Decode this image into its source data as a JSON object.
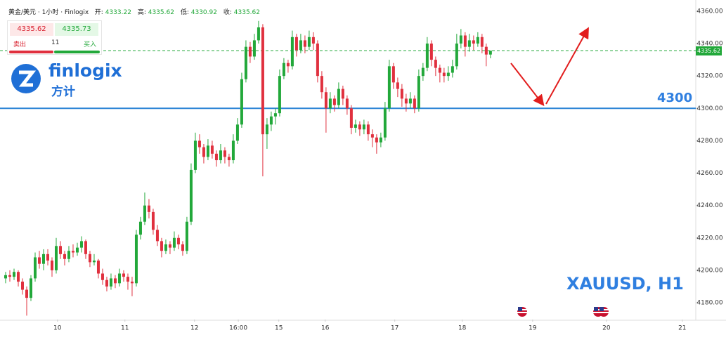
{
  "header": {
    "symbol": "黄金/美元 · 1小时 · Finlogix",
    "open_label": "开:",
    "open": 4333.22,
    "high_label": "高:",
    "high": 4335.62,
    "low_label": "低:",
    "low": 4330.92,
    "close_label": "收:",
    "close": 4335.62
  },
  "ticket": {
    "sell": 4335.62,
    "buy": 4335.73,
    "quantity": 11,
    "sell_label": "卖出",
    "buy_label": "买入"
  },
  "logo": {
    "name": "finlogix",
    "chinese": "方计"
  },
  "chart_data": {
    "type": "candlestick",
    "annotation": "XAUUSD, H1",
    "up_color": "#22a83a",
    "down_color": "#e0303e",
    "ylim": [
      4169.6,
      4366.9
    ],
    "yticks": [
      {
        "value": 4180,
        "label": "4180.00"
      },
      {
        "value": 4200,
        "label": "4200.00"
      },
      {
        "value": 4220,
        "label": "4220.00"
      },
      {
        "value": 4240,
        "label": "4240.00"
      },
      {
        "value": 4260,
        "label": "4260.00"
      },
      {
        "value": 4280,
        "label": "4280.00"
      },
      {
        "value": 4300,
        "label": "4300.00"
      },
      {
        "value": 4320,
        "label": "4320.00"
      },
      {
        "value": 4340,
        "label": "4340.00"
      },
      {
        "value": 4360,
        "label": "4360.00"
      }
    ],
    "xlim": [
      -0.5,
      163.7
    ],
    "xticks": [
      {
        "value": 12.3,
        "label": "10"
      },
      {
        "value": 28.3,
        "label": "11"
      },
      {
        "value": 44.8,
        "label": "12"
      },
      {
        "value": 55.2,
        "label": "16:00"
      },
      {
        "value": 64.8,
        "label": "15"
      },
      {
        "value": 75.8,
        "label": "16"
      },
      {
        "value": 92.3,
        "label": "17"
      },
      {
        "value": 108.3,
        "label": "18"
      },
      {
        "value": 125,
        "label": "19"
      },
      {
        "value": 142.5,
        "label": "20"
      },
      {
        "value": 160.5,
        "label": "21"
      }
    ],
    "hline": {
      "value": 4300,
      "color": "#2f86d6"
    },
    "last_price": 4335.62,
    "ohlc": [
      [
        4195,
        4199,
        4192,
        4197
      ],
      [
        4197,
        4200,
        4193,
        4196
      ],
      [
        4196,
        4201,
        4194,
        4199
      ],
      [
        4199,
        4200,
        4190,
        4193
      ],
      [
        4193,
        4195,
        4185,
        4188
      ],
      [
        4188,
        4190,
        4172,
        4183
      ],
      [
        4183,
        4197,
        4181,
        4195
      ],
      [
        4195,
        4211,
        4193,
        4208
      ],
      [
        4208,
        4212,
        4201,
        4204
      ],
      [
        4204,
        4213,
        4200,
        4210
      ],
      [
        4210,
        4213,
        4203,
        4206
      ],
      [
        4206,
        4208,
        4196,
        4200
      ],
      [
        4200,
        4220,
        4198,
        4215
      ],
      [
        4215,
        4218,
        4207,
        4210
      ],
      [
        4210,
        4212,
        4203,
        4207
      ],
      [
        4207,
        4215,
        4205,
        4212
      ],
      [
        4212,
        4216,
        4208,
        4211
      ],
      [
        4211,
        4217,
        4209,
        4214
      ],
      [
        4214,
        4221,
        4211,
        4218
      ],
      [
        4218,
        4219,
        4207,
        4210
      ],
      [
        4210,
        4212,
        4202,
        4205
      ],
      [
        4205,
        4210,
        4203,
        4206
      ],
      [
        4206,
        4207,
        4195,
        4198
      ],
      [
        4198,
        4201,
        4191,
        4194
      ],
      [
        4194,
        4196,
        4187,
        4190
      ],
      [
        4190,
        4198,
        4188,
        4195
      ],
      [
        4195,
        4197,
        4189,
        4192
      ],
      [
        4192,
        4201,
        4190,
        4198
      ],
      [
        4198,
        4200,
        4193,
        4196
      ],
      [
        4196,
        4198,
        4188,
        4193
      ],
      [
        4193,
        4196,
        4184,
        4192
      ],
      [
        4192,
        4225,
        4190,
        4222
      ],
      [
        4222,
        4233,
        4219,
        4230
      ],
      [
        4230,
        4248,
        4228,
        4240
      ],
      [
        4240,
        4244,
        4232,
        4236
      ],
      [
        4236,
        4238,
        4222,
        4225
      ],
      [
        4225,
        4228,
        4215,
        4218
      ],
      [
        4218,
        4220,
        4208,
        4212
      ],
      [
        4212,
        4219,
        4210,
        4216
      ],
      [
        4216,
        4218,
        4210,
        4214
      ],
      [
        4214,
        4224,
        4212,
        4220
      ],
      [
        4220,
        4222,
        4213,
        4216
      ],
      [
        4216,
        4218,
        4209,
        4212
      ],
      [
        4212,
        4233,
        4210,
        4230
      ],
      [
        4230,
        4266,
        4228,
        4262
      ],
      [
        4262,
        4285,
        4260,
        4280
      ],
      [
        4280,
        4284,
        4272,
        4276
      ],
      [
        4276,
        4278,
        4266,
        4270
      ],
      [
        4270,
        4281,
        4268,
        4277
      ],
      [
        4277,
        4280,
        4269,
        4272
      ],
      [
        4272,
        4274,
        4264,
        4268
      ],
      [
        4268,
        4278,
        4266,
        4274
      ],
      [
        4274,
        4276,
        4266,
        4270
      ],
      [
        4270,
        4272,
        4264,
        4268
      ],
      [
        4268,
        4284,
        4266,
        4280
      ],
      [
        4280,
        4294,
        4278,
        4290
      ],
      [
        4290,
        4322,
        4288,
        4318
      ],
      [
        4318,
        4342,
        4316,
        4338
      ],
      [
        4338,
        4341,
        4328,
        4332
      ],
      [
        4332,
        4346,
        4330,
        4342
      ],
      [
        4342,
        4354,
        4340,
        4350
      ],
      [
        4350,
        4352,
        4258,
        4284
      ],
      [
        4284,
        4294,
        4275,
        4290
      ],
      [
        4290,
        4298,
        4286,
        4295
      ],
      [
        4295,
        4300,
        4290,
        4297
      ],
      [
        4297,
        4324,
        4295,
        4320
      ],
      [
        4320,
        4331,
        4318,
        4328
      ],
      [
        4328,
        4330,
        4322,
        4326
      ],
      [
        4326,
        4348,
        4324,
        4344
      ],
      [
        4344,
        4346,
        4332,
        4336
      ],
      [
        4336,
        4346,
        4334,
        4342
      ],
      [
        4342,
        4345,
        4334,
        4338
      ],
      [
        4338,
        4348,
        4336,
        4344
      ],
      [
        4344,
        4347,
        4336,
        4340
      ],
      [
        4340,
        4342,
        4316,
        4320
      ],
      [
        4320,
        4323,
        4306,
        4310
      ],
      [
        4310,
        4313,
        4285,
        4300
      ],
      [
        4300,
        4310,
        4297,
        4306
      ],
      [
        4306,
        4308,
        4298,
        4302
      ],
      [
        4302,
        4316,
        4300,
        4312
      ],
      [
        4312,
        4314,
        4302,
        4306
      ],
      [
        4306,
        4308,
        4296,
        4300
      ],
      [
        4300,
        4302,
        4284,
        4288
      ],
      [
        4288,
        4293,
        4285,
        4290
      ],
      [
        4290,
        4292,
        4283,
        4287
      ],
      [
        4287,
        4293,
        4284,
        4290
      ],
      [
        4290,
        4292,
        4280,
        4284
      ],
      [
        4284,
        4287,
        4276,
        4282
      ],
      [
        4282,
        4284,
        4272,
        4279
      ],
      [
        4279,
        4285,
        4276,
        4282
      ],
      [
        4282,
        4304,
        4280,
        4300
      ],
      [
        4300,
        4330,
        4298,
        4326
      ],
      [
        4326,
        4328,
        4312,
        4316
      ],
      [
        4316,
        4319,
        4307,
        4312
      ],
      [
        4312,
        4315,
        4301,
        4306
      ],
      [
        4306,
        4309,
        4298,
        4303
      ],
      [
        4303,
        4310,
        4300,
        4306
      ],
      [
        4306,
        4308,
        4297,
        4300
      ],
      [
        4300,
        4324,
        4298,
        4320
      ],
      [
        4320,
        4328,
        4317,
        4325
      ],
      [
        4325,
        4344,
        4323,
        4340
      ],
      [
        4340,
        4342,
        4326,
        4330
      ],
      [
        4330,
        4332,
        4320,
        4325
      ],
      [
        4325,
        4327,
        4316,
        4322
      ],
      [
        4322,
        4325,
        4316,
        4320
      ],
      [
        4320,
        4326,
        4317,
        4322
      ],
      [
        4322,
        4330,
        4319,
        4326
      ],
      [
        4326,
        4346,
        4324,
        4340
      ],
      [
        4340,
        4349,
        4337,
        4345
      ],
      [
        4345,
        4347,
        4332,
        4338
      ],
      [
        4338,
        4346,
        4335,
        4342
      ],
      [
        4342,
        4345,
        4336,
        4340
      ],
      [
        4340,
        4347,
        4338,
        4344
      ],
      [
        4344,
        4346,
        4334,
        4338
      ],
      [
        4338,
        4340,
        4326,
        4333.22
      ],
      [
        4333.22,
        4335.62,
        4330.92,
        4335.62
      ]
    ]
  }
}
